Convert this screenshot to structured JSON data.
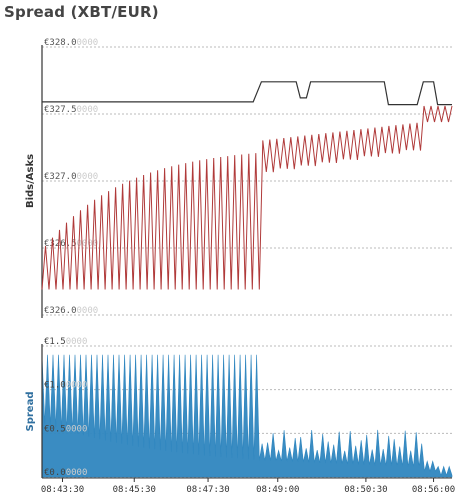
{
  "page": {
    "title": "Spread (XBT/EUR)"
  },
  "chart_data": [
    {
      "type": "line",
      "title": "Spread (XBT/EUR)",
      "ylabel": "Bids/Asks",
      "ylim": [
        326.0,
        328.0
      ],
      "yticks": [
        {
          "value": 328.0,
          "label": "€328.0",
          "faint": "0000"
        },
        {
          "value": 327.5,
          "label": "€327.5",
          "faint": "0000"
        },
        {
          "value": 327.0,
          "label": "€327.0",
          "faint": "0000"
        },
        {
          "value": 326.5,
          "label": "€326.5",
          "faint": "0000"
        },
        {
          "value": 326.0,
          "label": "€326.0",
          "faint": "0000"
        }
      ],
      "grid": true,
      "series": [
        {
          "role": "ask",
          "color": "#333333",
          "steps": [
            {
              "t": 0,
              "v": 327.59
            },
            {
              "t": 0.515,
              "v": 327.59
            },
            {
              "t": 0.535,
              "v": 327.74
            },
            {
              "t": 0.62,
              "v": 327.74
            },
            {
              "t": 0.63,
              "v": 327.62
            },
            {
              "t": 0.645,
              "v": 327.62
            },
            {
              "t": 0.655,
              "v": 327.74
            },
            {
              "t": 0.835,
              "v": 327.74
            },
            {
              "t": 0.845,
              "v": 327.57
            },
            {
              "t": 0.915,
              "v": 327.57
            },
            {
              "t": 0.93,
              "v": 327.74
            },
            {
              "t": 0.955,
              "v": 327.74
            },
            {
              "t": 0.965,
              "v": 327.57
            },
            {
              "t": 1.0,
              "v": 327.57
            }
          ]
        },
        {
          "role": "bid",
          "color": "#b03a3a",
          "floor": 326.19,
          "first_phase_end": 0.53,
          "second_phase_end": 0.93,
          "teeth": 118
        }
      ]
    },
    {
      "type": "area",
      "ylabel": "Spread",
      "ylim": [
        0,
        1.5
      ],
      "yticks": [
        {
          "value": 1.5,
          "label": "€1.5",
          "faint": "0000"
        },
        {
          "value": 1.0,
          "label": "€1.0",
          "faint": "0000"
        },
        {
          "value": 0.5,
          "label": "€0.5",
          "faint": "0000"
        },
        {
          "value": 0.0,
          "label": "€0.0",
          "faint": "0000"
        }
      ],
      "grid": true,
      "color": "#2f86bf",
      "peak": 1.4,
      "xticks": [
        "08:43:30",
        "08:45:30",
        "08:47:30",
        "08:49:00",
        "08:50:30",
        "08:56:00"
      ]
    }
  ]
}
